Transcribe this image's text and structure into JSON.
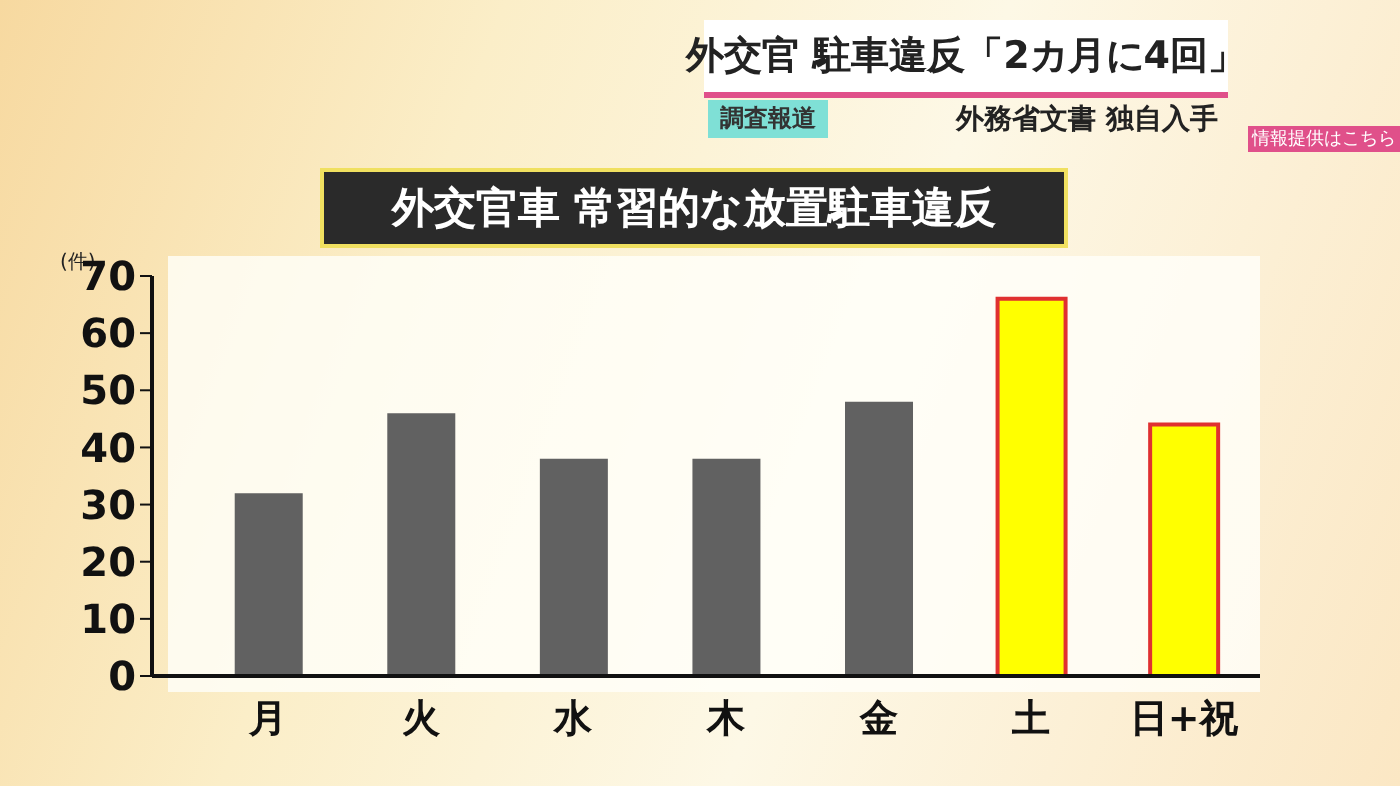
{
  "chart_data": {
    "type": "bar",
    "title": "外交官車 常習的な放置駐車違反",
    "ylabel": "(件)",
    "annotations": [
      "外交官 駐車違反「2カ月に4回」",
      "調査報道",
      "外務省文書 独自入手",
      "情報提供はこちら"
    ],
    "categories": [
      "月",
      "火",
      "水",
      "木",
      "金",
      "土",
      "日+祝"
    ],
    "values": [
      32,
      46,
      38,
      38,
      48,
      66,
      44
    ],
    "colors": [
      "#616161",
      "#616161",
      "#616161",
      "#616161",
      "#616161",
      "#ffff00",
      "#ffff00"
    ],
    "ylim": [
      0,
      70
    ],
    "yticks": [
      0,
      10,
      20,
      30,
      40,
      50,
      60,
      70
    ],
    "grid": false,
    "legend": false
  }
}
